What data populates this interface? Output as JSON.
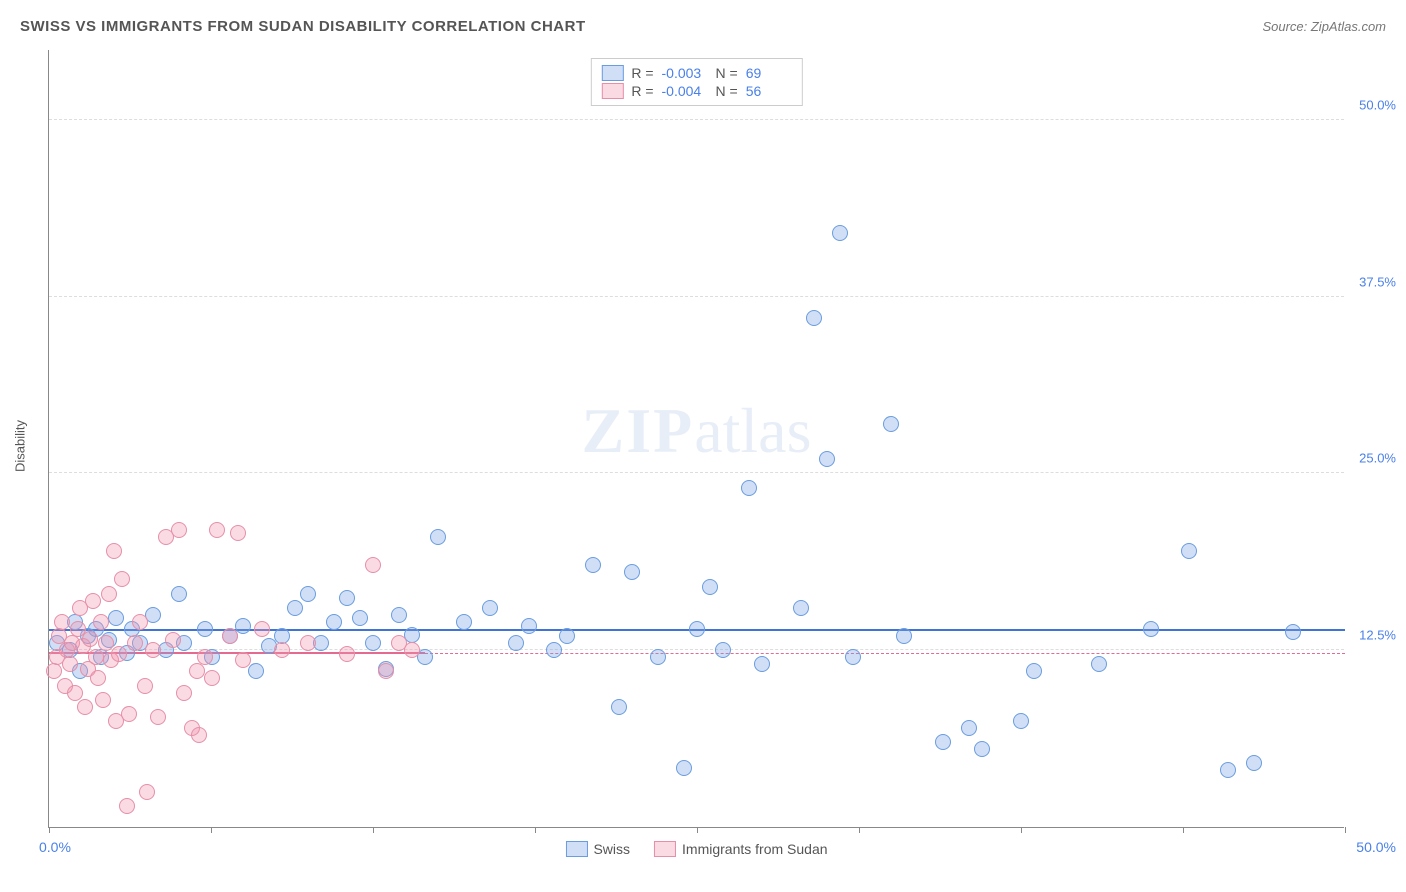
{
  "header": {
    "title": "SWISS VS IMMIGRANTS FROM SUDAN DISABILITY CORRELATION CHART",
    "source": "Source: ZipAtlas.com"
  },
  "axes": {
    "y_title": "Disability",
    "x_min_label": "0.0%",
    "x_max_label": "50.0%",
    "xlim": [
      0,
      50
    ],
    "ylim": [
      0,
      55
    ],
    "y_ticks": [
      {
        "value": 12.5,
        "label": "12.5%"
      },
      {
        "value": 25.0,
        "label": "25.0%"
      },
      {
        "value": 37.5,
        "label": "37.5%"
      },
      {
        "value": 50.0,
        "label": "50.0%"
      }
    ],
    "x_tick_positions": [
      0,
      6.25,
      12.5,
      18.75,
      25,
      31.25,
      37.5,
      43.75,
      50
    ]
  },
  "watermark": {
    "part1": "ZIP",
    "part2": "atlas"
  },
  "legend_top": [
    {
      "series": "swiss",
      "r": "-0.003",
      "n": "69"
    },
    {
      "series": "sudan",
      "r": "-0.004",
      "n": "56"
    }
  ],
  "legend_bottom": [
    {
      "series": "swiss",
      "label": "Swiss"
    },
    {
      "series": "sudan",
      "label": "Immigrants from Sudan"
    }
  ],
  "series": {
    "swiss": {
      "label": "Swiss",
      "fill": "rgba(120,160,230,0.35)",
      "stroke": "#6a9de0",
      "marker_radius": 8,
      "regression": {
        "y_start": 13.8,
        "y_end": 13.9,
        "solid_x_end": 50,
        "dash_x_end": 50,
        "color": "#3f74d6"
      },
      "points": [
        [
          0.3,
          13.0
        ],
        [
          0.8,
          12.5
        ],
        [
          1.0,
          14.5
        ],
        [
          1.2,
          11.0
        ],
        [
          1.5,
          13.5
        ],
        [
          1.8,
          14.0
        ],
        [
          2.0,
          12.0
        ],
        [
          2.3,
          13.2
        ],
        [
          2.6,
          14.8
        ],
        [
          3.0,
          12.3
        ],
        [
          3.2,
          14.0
        ],
        [
          3.5,
          13.0
        ],
        [
          4.0,
          15.0
        ],
        [
          4.5,
          12.5
        ],
        [
          5.0,
          16.5
        ],
        [
          5.2,
          13.0
        ],
        [
          6.0,
          14.0
        ],
        [
          6.3,
          12.0
        ],
        [
          7.0,
          13.5
        ],
        [
          7.5,
          14.2
        ],
        [
          8.0,
          11.0
        ],
        [
          8.5,
          12.8
        ],
        [
          9.0,
          13.5
        ],
        [
          9.5,
          15.5
        ],
        [
          10.0,
          16.5
        ],
        [
          10.5,
          13.0
        ],
        [
          11.0,
          14.5
        ],
        [
          11.5,
          16.2
        ],
        [
          12.0,
          14.8
        ],
        [
          12.5,
          13.0
        ],
        [
          13.0,
          11.2
        ],
        [
          13.5,
          15.0
        ],
        [
          14.0,
          13.6
        ],
        [
          14.5,
          12.0
        ],
        [
          15.0,
          20.5
        ],
        [
          16.0,
          14.5
        ],
        [
          17.0,
          15.5
        ],
        [
          18.0,
          13.0
        ],
        [
          18.5,
          14.2
        ],
        [
          19.5,
          12.5
        ],
        [
          20.0,
          13.5
        ],
        [
          21.0,
          18.5
        ],
        [
          22.0,
          8.5
        ],
        [
          22.5,
          18.0
        ],
        [
          23.5,
          12.0
        ],
        [
          24.5,
          4.2
        ],
        [
          25.0,
          14.0
        ],
        [
          25.5,
          17.0
        ],
        [
          26.0,
          12.5
        ],
        [
          27.0,
          24.0
        ],
        [
          27.5,
          11.5
        ],
        [
          29.0,
          15.5
        ],
        [
          29.5,
          36.0
        ],
        [
          30.0,
          26.0
        ],
        [
          30.5,
          42.0
        ],
        [
          31.0,
          12.0
        ],
        [
          32.5,
          28.5
        ],
        [
          33.0,
          13.5
        ],
        [
          34.5,
          6.0
        ],
        [
          35.5,
          7.0
        ],
        [
          36.0,
          5.5
        ],
        [
          37.5,
          7.5
        ],
        [
          38.0,
          11.0
        ],
        [
          40.5,
          11.5
        ],
        [
          42.5,
          14.0
        ],
        [
          44.0,
          19.5
        ],
        [
          45.5,
          4.0
        ],
        [
          46.5,
          4.5
        ],
        [
          48.0,
          13.8
        ]
      ]
    },
    "sudan": {
      "label": "Immigrants from Sudan",
      "fill": "rgba(240,150,175,0.35)",
      "stroke": "#e68fa8",
      "marker_radius": 8,
      "regression": {
        "y_start": 12.3,
        "y_end": 12.2,
        "solid_x_end": 14.5,
        "dash_x_end": 50,
        "color": "#e46a8f"
      },
      "points": [
        [
          0.2,
          11.0
        ],
        [
          0.3,
          12.0
        ],
        [
          0.4,
          13.5
        ],
        [
          0.5,
          14.5
        ],
        [
          0.6,
          10.0
        ],
        [
          0.7,
          12.5
        ],
        [
          0.8,
          11.5
        ],
        [
          0.9,
          13.0
        ],
        [
          1.0,
          9.5
        ],
        [
          1.1,
          14.0
        ],
        [
          1.2,
          15.5
        ],
        [
          1.3,
          12.8
        ],
        [
          1.4,
          8.5
        ],
        [
          1.5,
          11.2
        ],
        [
          1.6,
          13.3
        ],
        [
          1.7,
          16.0
        ],
        [
          1.8,
          12.0
        ],
        [
          1.9,
          10.5
        ],
        [
          2.0,
          14.5
        ],
        [
          2.1,
          9.0
        ],
        [
          2.2,
          13.0
        ],
        [
          2.3,
          16.5
        ],
        [
          2.4,
          11.8
        ],
        [
          2.5,
          19.5
        ],
        [
          2.6,
          7.5
        ],
        [
          2.7,
          12.2
        ],
        [
          2.8,
          17.5
        ],
        [
          3.0,
          1.5
        ],
        [
          3.1,
          8.0
        ],
        [
          3.3,
          13.0
        ],
        [
          3.5,
          14.5
        ],
        [
          3.7,
          10.0
        ],
        [
          3.8,
          2.5
        ],
        [
          4.0,
          12.5
        ],
        [
          4.2,
          7.8
        ],
        [
          4.5,
          20.5
        ],
        [
          4.8,
          13.2
        ],
        [
          5.0,
          21.0
        ],
        [
          5.2,
          9.5
        ],
        [
          5.5,
          7.0
        ],
        [
          5.7,
          11.0
        ],
        [
          5.8,
          6.5
        ],
        [
          6.0,
          12.0
        ],
        [
          6.3,
          10.5
        ],
        [
          6.5,
          21.0
        ],
        [
          7.0,
          13.5
        ],
        [
          7.3,
          20.8
        ],
        [
          7.5,
          11.8
        ],
        [
          8.2,
          14.0
        ],
        [
          9.0,
          12.5
        ],
        [
          10.0,
          13.0
        ],
        [
          11.5,
          12.2
        ],
        [
          12.5,
          18.5
        ],
        [
          13.0,
          11.0
        ],
        [
          13.5,
          13.0
        ],
        [
          14.0,
          12.5
        ]
      ]
    }
  },
  "styling": {
    "background": "#ffffff",
    "grid_color": "#dddddd",
    "axis_color": "#888888",
    "tick_label_color": "#4a80e8",
    "title_color": "#555555"
  }
}
